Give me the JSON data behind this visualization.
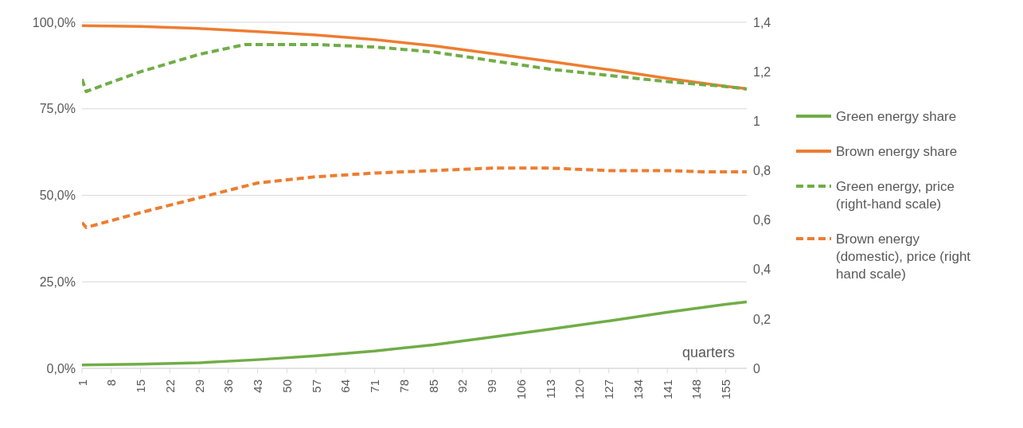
{
  "chart_data": {
    "type": "line",
    "xlabel": "quarters",
    "xlim": [
      1,
      160
    ],
    "xticks": [
      1,
      8,
      15,
      22,
      29,
      36,
      43,
      50,
      57,
      64,
      71,
      78,
      85,
      92,
      99,
      106,
      113,
      120,
      127,
      134,
      141,
      148,
      155
    ],
    "ylim": [
      0,
      100
    ],
    "yticks": [
      {
        "value": 0,
        "label": "0,0%"
      },
      {
        "value": 25,
        "label": "25,0%"
      },
      {
        "value": 50,
        "label": "50,0%"
      },
      {
        "value": 75,
        "label": "75,0%"
      },
      {
        "value": 100,
        "label": "100,0%"
      }
    ],
    "y2lim": [
      0,
      1.4
    ],
    "y2ticks": [
      0,
      {
        "value": 0.2,
        "label": "0,2"
      },
      {
        "value": 0.4,
        "label": "0,4"
      },
      {
        "value": 0.6,
        "label": "0,6"
      },
      {
        "value": 0.8,
        "label": "0,8"
      },
      1,
      {
        "value": 1.2,
        "label": "1,2"
      },
      {
        "value": 1.4,
        "label": "1,4"
      }
    ],
    "grid": "y",
    "legend": "right",
    "marker": "none",
    "series": [
      {
        "name": "Green energy share",
        "color": "#70ad47",
        "line_style": "solid",
        "x": [
          1,
          15,
          29,
          43,
          57,
          71,
          85,
          99,
          113,
          127,
          141,
          155,
          160
        ],
        "values": [
          1.0,
          1.2,
          1.6,
          2.5,
          3.6,
          5.0,
          6.8,
          9.0,
          11.3,
          13.7,
          16.2,
          18.5,
          19.2
        ]
      },
      {
        "name": "Brown energy share",
        "color": "#ed7d31",
        "line_style": "solid",
        "x": [
          1,
          15,
          29,
          43,
          57,
          71,
          85,
          99,
          113,
          127,
          141,
          155,
          160
        ],
        "values": [
          99,
          98.8,
          98.2,
          97.3,
          96.3,
          95,
          93.2,
          91,
          88.7,
          86.3,
          83.8,
          81.5,
          80.8
        ]
      },
      {
        "name": "Green energy, price (right-hand scale)",
        "color": "#70ad47",
        "line_style": "dashed",
        "axis": "y2",
        "x": [
          1,
          2,
          15,
          29,
          40,
          50,
          57,
          71,
          85,
          99,
          113,
          127,
          141,
          155,
          160
        ],
        "values": [
          1.17,
          1.12,
          1.2,
          1.27,
          1.31,
          1.31,
          1.31,
          1.3,
          1.28,
          1.245,
          1.21,
          1.185,
          1.16,
          1.14,
          1.13
        ]
      },
      {
        "name": "Brown energy (domestic), price (right hand scale)",
        "color": "#ed7d31",
        "line_style": "dashed",
        "axis": "y2",
        "x": [
          1,
          2,
          15,
          29,
          43,
          57,
          71,
          85,
          99,
          113,
          127,
          141,
          150,
          160
        ],
        "values": [
          0.59,
          0.57,
          0.63,
          0.69,
          0.75,
          0.775,
          0.79,
          0.8,
          0.81,
          0.81,
          0.8,
          0.8,
          0.795,
          0.795
        ]
      }
    ]
  }
}
